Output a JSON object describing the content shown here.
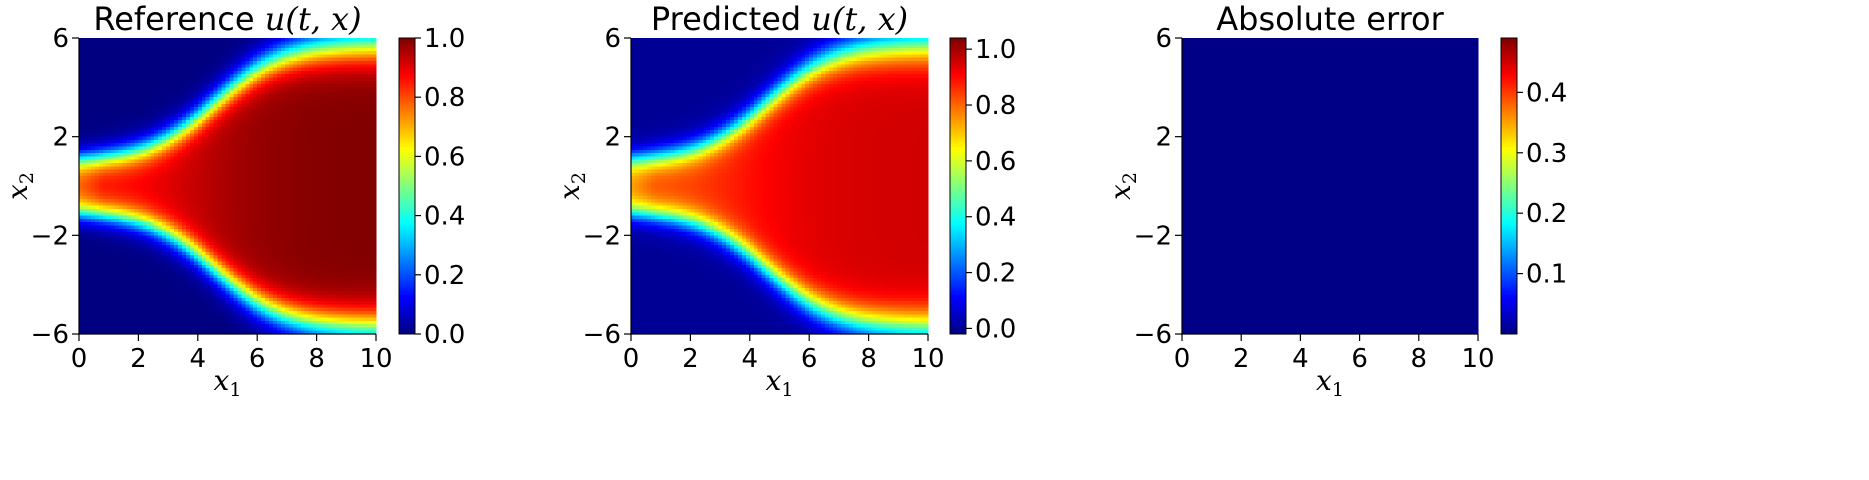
{
  "chart_data": [
    {
      "type": "heatmap",
      "title_prefix": "Reference ",
      "title_math": "u(t, x)",
      "xlabel": "x",
      "xlabel_sub": "1",
      "ylabel": "x",
      "ylabel_sub": "2",
      "xlim": [
        0,
        10
      ],
      "ylim": [
        -6,
        6
      ],
      "x_ticks": [
        "0",
        "2",
        "4",
        "6",
        "8",
        "10"
      ],
      "y_ticks": [
        "−6",
        "−2",
        "2",
        "6"
      ],
      "colorbar_ticks": [
        "0.0",
        "0.2",
        "0.4",
        "0.6",
        "0.8",
        "1.0"
      ],
      "colorbar_range": [
        0.0,
        1.0
      ],
      "colormap": "jet",
      "field": "Front: value near 1 between boundaries at x2 = ±(1 → 5.8) growing sigmoid-like with x1, near 0 outside; interior peaks ~1.0 toward right"
    },
    {
      "type": "heatmap",
      "title_prefix": "Predicted ",
      "title_math": "u(t, x)",
      "xlabel": "x",
      "xlabel_sub": "1",
      "ylabel": "x",
      "ylabel_sub": "2",
      "xlim": [
        0,
        10
      ],
      "ylim": [
        -6,
        6
      ],
      "x_ticks": [
        "0",
        "2",
        "4",
        "6",
        "8",
        "10"
      ],
      "y_ticks": [
        "−6",
        "−2",
        "2",
        "6"
      ],
      "colorbar_ticks": [
        "0.0",
        "0.2",
        "0.4",
        "0.6",
        "0.8",
        "1.0"
      ],
      "colorbar_range": [
        -0.02,
        1.04
      ],
      "colormap": "jet",
      "field": "Same front shape as reference; interior value ~0.95"
    },
    {
      "type": "heatmap",
      "title_prefix": "Absolute error",
      "title_math": "",
      "xlabel": "x",
      "xlabel_sub": "1",
      "ylabel": "x",
      "ylabel_sub": "2",
      "xlim": [
        0,
        10
      ],
      "ylim": [
        -6,
        6
      ],
      "x_ticks": [
        "0",
        "2",
        "4",
        "6",
        "8",
        "10"
      ],
      "y_ticks": [
        "−6",
        "−2",
        "2",
        "6"
      ],
      "colorbar_ticks": [
        "0.1",
        "0.2",
        "0.3",
        "0.4"
      ],
      "colorbar_range": [
        0.0,
        0.49
      ],
      "colormap": "jet",
      "field": "Near zero everywhere"
    }
  ]
}
